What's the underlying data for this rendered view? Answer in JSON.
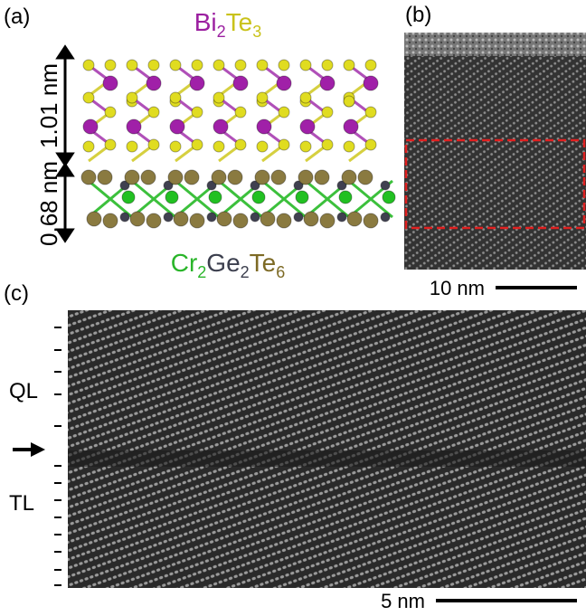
{
  "panel_a": {
    "label": "(a)",
    "formula_top": [
      {
        "text": "Bi",
        "sub": false,
        "color": "#9b1fa0"
      },
      {
        "text": "2",
        "sub": true,
        "color": "#9b1fa0"
      },
      {
        "text": "Te",
        "sub": false,
        "color": "#c9c21a"
      },
      {
        "text": "3",
        "sub": true,
        "color": "#c9c21a"
      }
    ],
    "thickness_top": "1.01 nm",
    "thickness_bottom": "0.68 nm",
    "formula_bottom": [
      {
        "text": "Cr",
        "sub": false,
        "color": "#2ab52a"
      },
      {
        "text": "2",
        "sub": true,
        "color": "#2ab52a"
      },
      {
        "text": "Ge",
        "sub": false,
        "color": "#3c3f4e"
      },
      {
        "text": "2",
        "sub": true,
        "color": "#3c3f4e"
      },
      {
        "text": "Te",
        "sub": false,
        "color": "#7d6a25"
      },
      {
        "text": "6",
        "sub": true,
        "color": "#7d6a25"
      }
    ]
  },
  "panel_b": {
    "label": "(b)",
    "scale_bar": "10 nm"
  },
  "panel_c": {
    "label": "(c)",
    "layer_top": "QL",
    "layer_bottom": "TL",
    "scale_bar": "5 nm"
  }
}
